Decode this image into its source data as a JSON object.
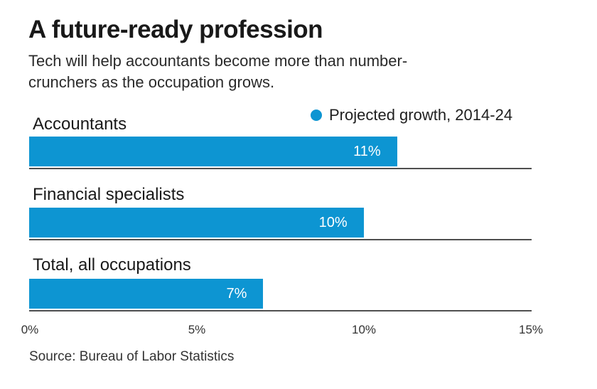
{
  "chart_data": {
    "type": "bar",
    "orientation": "horizontal",
    "title": "A future-ready profession",
    "subtitle_lines": [
      "Tech will help accountants become more than number-",
      "crunchers as the occupation grows."
    ],
    "legend": {
      "label": "Projected growth, 2014-24",
      "marker": "circle-dot"
    },
    "legend_position": "top-right",
    "categories": [
      "Accountants",
      "Financial specialists",
      "Total, all occupations"
    ],
    "values": [
      11,
      10,
      7
    ],
    "value_labels": [
      "11%",
      "10%",
      "7%"
    ],
    "x_ticks": [
      "0%",
      "5%",
      "10%",
      "15%"
    ],
    "xlim": [
      0,
      15
    ],
    "grid": "horizontal-separator-under-each-bar",
    "source": "Source: Bureau of Labor Statistics",
    "colors": {
      "bar": "#0d95d2",
      "value_text": "#ffffff",
      "heading_text": "#191919",
      "body_text": "#333333",
      "separator": "#4f4f4f",
      "background": "#ffffff"
    }
  }
}
